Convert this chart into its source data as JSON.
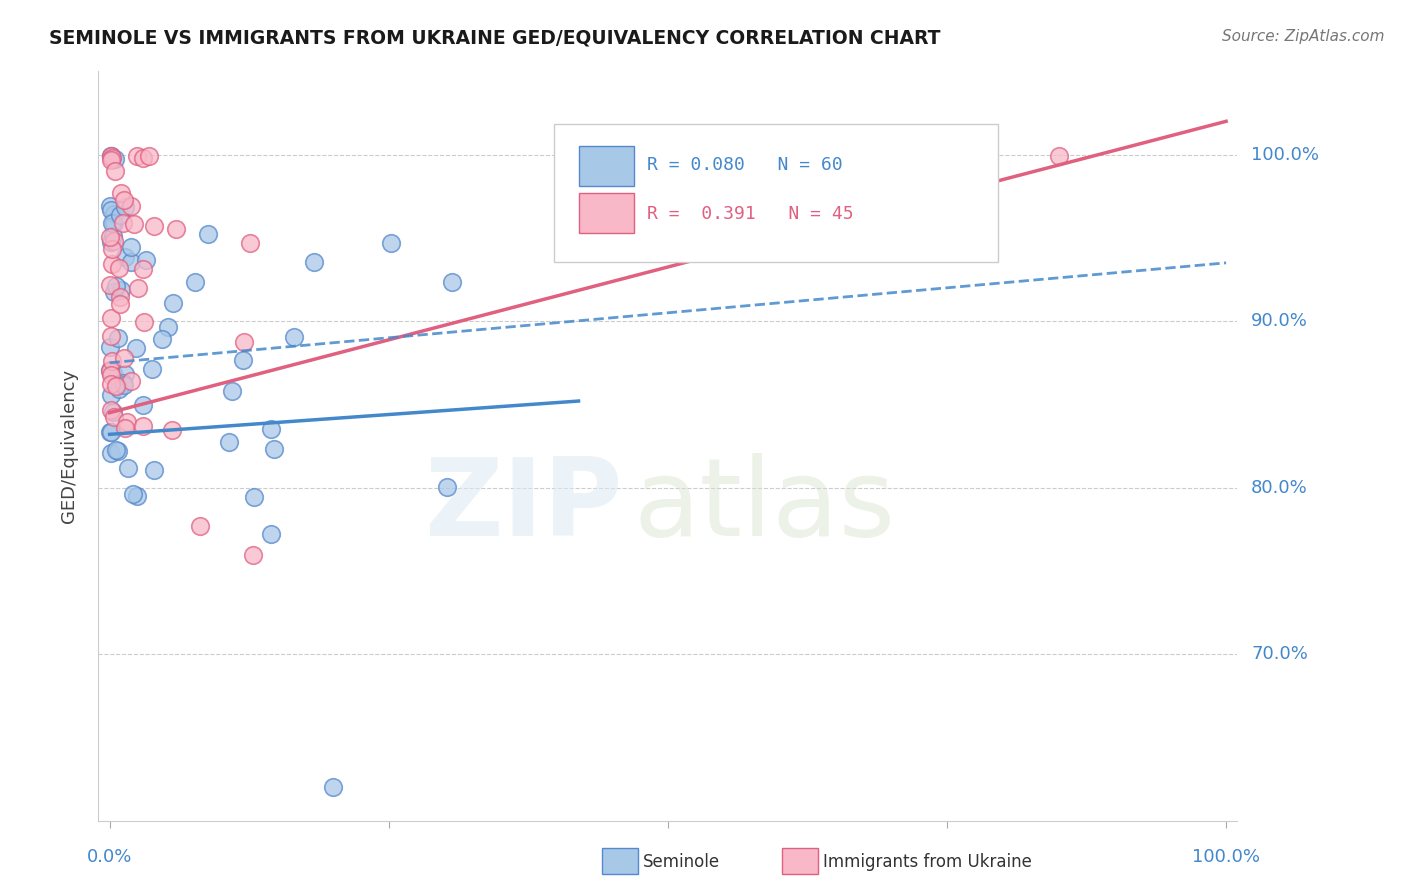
{
  "title": "SEMINOLE VS IMMIGRANTS FROM UKRAINE GED/EQUIVALENCY CORRELATION CHART",
  "source": "Source: ZipAtlas.com",
  "ylabel": "GED/Equivalency",
  "legend_label1": "Seminole",
  "legend_label2": "Immigrants from Ukraine",
  "r1": 0.08,
  "n1": 60,
  "r2": 0.391,
  "n2": 45,
  "ytick_labels": [
    "100.0%",
    "90.0%",
    "80.0%",
    "70.0%"
  ],
  "ytick_values": [
    1.0,
    0.9,
    0.8,
    0.7
  ],
  "color_blue_fill": "#A8C8E8",
  "color_blue_edge": "#5588CC",
  "color_pink_fill": "#F8B8C8",
  "color_pink_edge": "#E06080",
  "color_blue_line": "#4488CC",
  "color_pink_line": "#E06080",
  "background": "#ffffff",
  "sem_line_x": [
    0.0,
    0.42
  ],
  "sem_line_y": [
    0.832,
    0.852
  ],
  "ukr_line_x": [
    0.0,
    1.0
  ],
  "ukr_line_y": [
    0.845,
    1.02
  ],
  "dash_line_x": [
    0.0,
    1.0
  ],
  "dash_line_y": [
    0.875,
    0.935
  ],
  "xlim": [
    -0.01,
    1.01
  ],
  "ylim": [
    0.6,
    1.05
  ]
}
